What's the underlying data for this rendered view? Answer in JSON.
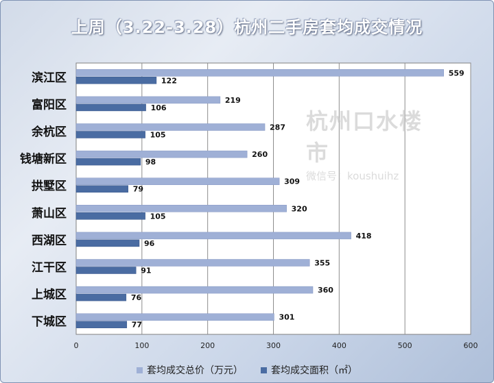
{
  "title": "上周（3.22-3.28）杭州二手房套均成交情况",
  "watermark": {
    "brand": "杭州口水楼市",
    "id": "微信号：koushuihz"
  },
  "colors": {
    "total_price": "#9fb0d6",
    "area": "#4a6ca2",
    "background": "#dde4ef"
  },
  "chart_data": {
    "type": "bar",
    "orientation": "horizontal",
    "title": "上周（3.22-3.28）杭州二手房套均成交情况",
    "categories": [
      "滨江区",
      "富阳区",
      "余杭区",
      "钱塘新区",
      "拱墅区",
      "萧山区",
      "西湖区",
      "江干区",
      "上城区",
      "下城区"
    ],
    "series": [
      {
        "name": "套均成交总价（万元）",
        "values": [
          559,
          219,
          287,
          260,
          309,
          320,
          418,
          355,
          360,
          301
        ]
      },
      {
        "name": "套均成交面积（㎡）",
        "values": [
          122,
          106,
          105,
          98,
          79,
          105,
          96,
          91,
          76,
          77
        ]
      }
    ],
    "xlim": [
      0,
      600
    ],
    "x_ticks": [
      0,
      100,
      200,
      300,
      400,
      500,
      600
    ],
    "grid": true,
    "legend_position": "bottom",
    "data_labels": true
  }
}
